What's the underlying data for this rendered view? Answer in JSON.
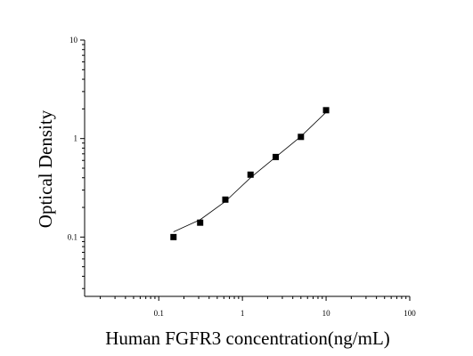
{
  "chart_data": {
    "type": "scatter",
    "xlabel": "Human FGFR3 concentration(ng/mL)",
    "ylabel": "Optical Density",
    "x": [
      0.15,
      0.3125,
      0.625,
      1.25,
      2.5,
      5,
      10
    ],
    "values": [
      0.1,
      0.14,
      0.24,
      0.43,
      0.65,
      1.04,
      1.94
    ],
    "color": "#000000",
    "fit": {
      "x": [
        0.15,
        0.3125,
        0.625,
        1.25,
        2.5,
        5,
        10
      ],
      "values": [
        0.113,
        0.15,
        0.23,
        0.4,
        0.65,
        1.05,
        1.85
      ]
    },
    "xlog": true,
    "ylog": true,
    "xlim": [
      0.013,
      100
    ],
    "ylim": [
      0.025,
      10
    ],
    "xticks": [
      0.1,
      1,
      10,
      100
    ],
    "yticks": [
      0.1,
      1,
      10
    ],
    "x_minor_ticks": [
      0.02,
      0.03,
      0.04,
      0.05,
      0.06,
      0.07,
      0.08,
      0.09,
      0.2,
      0.3,
      0.4,
      0.5,
      0.6,
      0.7,
      0.8,
      0.9,
      2,
      3,
      4,
      5,
      6,
      7,
      8,
      9,
      20,
      30,
      40,
      50,
      60,
      70,
      80,
      90
    ],
    "y_minor_ticks": [
      0.03,
      0.04,
      0.05,
      0.06,
      0.07,
      0.08,
      0.09,
      0.2,
      0.3,
      0.4,
      0.5,
      0.6,
      0.7,
      0.8,
      0.9,
      2,
      3,
      4,
      5,
      6,
      7,
      8,
      9
    ]
  }
}
